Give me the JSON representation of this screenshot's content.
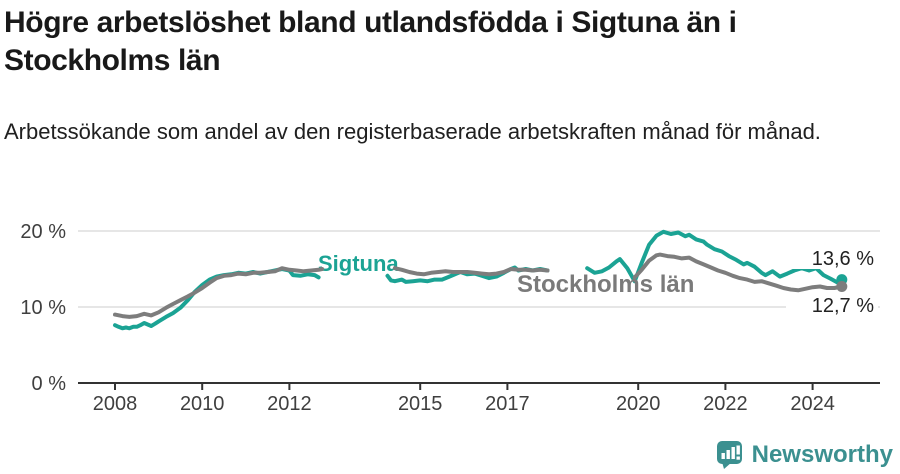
{
  "header": {
    "title": "Högre arbetslöshet bland utlandsfödda i Sigtuna än i Stockholms län",
    "subtitle": "Arbetssökande som andel av den registerbaserade arbetskraften månad för månad."
  },
  "colors": {
    "sigtuna": "#1ba394",
    "stockholm": "#7d7d7d",
    "sigtuna_label": "#1ba394",
    "stockholm_label": "#7a7a7a",
    "grid": "#dddddd",
    "axis": "#333333",
    "tick_label": "#3f3f3f",
    "value_label": "#222222",
    "brand": "#3b9090"
  },
  "icons": {
    "footer_logo": "newsworthy-bubble-bar-chart-icon"
  },
  "chart_data": {
    "type": "line",
    "unit": "%",
    "title": "Högre arbetslöshet bland utlandsfödda i Sigtuna än i Stockholms län",
    "subtitle": "Arbetssökande som andel av den registerbaserade arbetskraften månad för månad.",
    "xlabel": "",
    "ylabel": "",
    "xlim": [
      2007.15,
      2025.55
    ],
    "ylim": [
      0,
      21.5
    ],
    "grid": "horizontal",
    "legend_position": "inline-labels",
    "x_ticks": [
      2008,
      2010,
      2012,
      2015,
      2017,
      2020,
      2022,
      2024
    ],
    "x_tick_labels": [
      "2008",
      "2010",
      "2012",
      "2015",
      "2017",
      "2020",
      "2022",
      "2024"
    ],
    "y_ticks": [
      0,
      10,
      20
    ],
    "y_tick_labels": [
      "0 %",
      "10 %",
      "20 %"
    ],
    "series": [
      {
        "name": "Sigtuna",
        "end_label": "13,6 %",
        "end_value": 13.6,
        "segments": [
          [
            [
              2008.0,
              7.6
            ],
            [
              2008.08,
              7.4
            ],
            [
              2008.17,
              7.2
            ],
            [
              2008.25,
              7.3
            ],
            [
              2008.33,
              7.2
            ],
            [
              2008.42,
              7.4
            ],
            [
              2008.5,
              7.4
            ],
            [
              2008.58,
              7.6
            ],
            [
              2008.67,
              7.9
            ],
            [
              2008.75,
              7.7
            ],
            [
              2008.83,
              7.5
            ],
            [
              2008.92,
              7.8
            ],
            [
              2009.0,
              8.1
            ],
            [
              2009.17,
              8.7
            ],
            [
              2009.33,
              9.2
            ],
            [
              2009.5,
              9.9
            ],
            [
              2009.67,
              10.9
            ],
            [
              2009.83,
              12.0
            ],
            [
              2010.0,
              12.9
            ],
            [
              2010.17,
              13.6
            ],
            [
              2010.33,
              14.0
            ],
            [
              2010.5,
              14.2
            ],
            [
              2010.67,
              14.3
            ],
            [
              2010.83,
              14.5
            ],
            [
              2011.0,
              14.4
            ],
            [
              2011.17,
              14.6
            ],
            [
              2011.33,
              14.4
            ],
            [
              2011.5,
              14.6
            ],
            [
              2011.67,
              14.8
            ],
            [
              2011.83,
              15.0
            ],
            [
              2012.0,
              14.8
            ],
            [
              2012.08,
              14.2
            ],
            [
              2012.25,
              14.1
            ],
            [
              2012.42,
              14.3
            ],
            [
              2012.58,
              14.2
            ],
            [
              2012.67,
              13.9
            ]
          ],
          [
            [
              2014.25,
              14.1
            ],
            [
              2014.33,
              13.5
            ],
            [
              2014.42,
              13.4
            ],
            [
              2014.58,
              13.6
            ],
            [
              2014.67,
              13.3
            ],
            [
              2014.83,
              13.4
            ],
            [
              2015.0,
              13.5
            ],
            [
              2015.17,
              13.4
            ],
            [
              2015.33,
              13.6
            ],
            [
              2015.5,
              13.6
            ],
            [
              2015.67,
              14.0
            ],
            [
              2015.83,
              14.4
            ],
            [
              2015.92,
              14.6
            ],
            [
              2016.08,
              14.3
            ],
            [
              2016.25,
              14.4
            ],
            [
              2016.42,
              14.1
            ],
            [
              2016.58,
              13.8
            ],
            [
              2016.75,
              14.0
            ],
            [
              2016.92,
              14.5
            ],
            [
              2017.08,
              15.0
            ],
            [
              2017.17,
              15.2
            ],
            [
              2017.25,
              14.8
            ],
            [
              2017.42,
              15.0
            ],
            [
              2017.58,
              14.8
            ],
            [
              2017.75,
              15.0
            ],
            [
              2017.92,
              14.8
            ]
          ],
          [
            [
              2018.83,
              15.1
            ],
            [
              2019.0,
              14.5
            ],
            [
              2019.17,
              14.7
            ],
            [
              2019.33,
              15.2
            ],
            [
              2019.5,
              16.0
            ],
            [
              2019.58,
              16.3
            ],
            [
              2019.75,
              15.1
            ],
            [
              2019.92,
              13.4
            ],
            [
              2020.08,
              15.8
            ],
            [
              2020.25,
              18.2
            ],
            [
              2020.42,
              19.4
            ],
            [
              2020.58,
              19.9
            ],
            [
              2020.75,
              19.6
            ],
            [
              2020.92,
              19.8
            ],
            [
              2021.08,
              19.3
            ],
            [
              2021.17,
              19.5
            ],
            [
              2021.33,
              18.9
            ],
            [
              2021.5,
              18.6
            ],
            [
              2021.58,
              18.2
            ],
            [
              2021.75,
              17.6
            ],
            [
              2021.92,
              17.3
            ],
            [
              2022.08,
              16.7
            ],
            [
              2022.25,
              16.2
            ],
            [
              2022.42,
              15.6
            ],
            [
              2022.5,
              15.8
            ],
            [
              2022.67,
              15.3
            ],
            [
              2022.83,
              14.5
            ],
            [
              2022.92,
              14.2
            ],
            [
              2023.08,
              14.7
            ],
            [
              2023.25,
              14.0
            ],
            [
              2023.42,
              14.4
            ],
            [
              2023.58,
              14.8
            ],
            [
              2023.75,
              15.1
            ],
            [
              2023.92,
              14.8
            ],
            [
              2024.08,
              15.1
            ],
            [
              2024.25,
              14.2
            ],
            [
              2024.42,
              13.7
            ],
            [
              2024.58,
              13.2
            ],
            [
              2024.67,
              13.6
            ]
          ]
        ]
      },
      {
        "name": "Stockholms län",
        "end_label": "12,7 %",
        "end_value": 12.7,
        "segments": [
          [
            [
              2008.0,
              9.0
            ],
            [
              2008.17,
              8.8
            ],
            [
              2008.33,
              8.7
            ],
            [
              2008.5,
              8.8
            ],
            [
              2008.67,
              9.1
            ],
            [
              2008.83,
              8.9
            ],
            [
              2009.0,
              9.3
            ],
            [
              2009.17,
              9.9
            ],
            [
              2009.33,
              10.4
            ],
            [
              2009.5,
              10.9
            ],
            [
              2009.67,
              11.4
            ],
            [
              2009.83,
              11.9
            ],
            [
              2010.0,
              12.5
            ],
            [
              2010.17,
              13.2
            ],
            [
              2010.33,
              13.8
            ],
            [
              2010.5,
              14.1
            ],
            [
              2010.67,
              14.2
            ],
            [
              2010.83,
              14.4
            ],
            [
              2011.0,
              14.3
            ],
            [
              2011.17,
              14.5
            ],
            [
              2011.33,
              14.5
            ],
            [
              2011.5,
              14.6
            ],
            [
              2011.67,
              14.7
            ],
            [
              2011.83,
              15.1
            ],
            [
              2012.0,
              14.9
            ],
            [
              2012.17,
              14.8
            ],
            [
              2012.33,
              14.7
            ],
            [
              2012.5,
              14.8
            ],
            [
              2012.67,
              14.9
            ],
            [
              2012.75,
              15.0
            ]
          ],
          [
            [
              2014.42,
              15.1
            ],
            [
              2014.58,
              14.9
            ],
            [
              2014.75,
              14.6
            ],
            [
              2014.92,
              14.4
            ],
            [
              2015.08,
              14.3
            ],
            [
              2015.25,
              14.5
            ],
            [
              2015.42,
              14.6
            ],
            [
              2015.58,
              14.7
            ],
            [
              2015.75,
              14.6
            ],
            [
              2015.92,
              14.6
            ],
            [
              2016.08,
              14.6
            ],
            [
              2016.25,
              14.5
            ],
            [
              2016.42,
              14.4
            ],
            [
              2016.58,
              14.3
            ],
            [
              2016.75,
              14.4
            ],
            [
              2016.92,
              14.6
            ],
            [
              2017.08,
              15.0
            ],
            [
              2017.25,
              14.9
            ],
            [
              2017.42,
              14.9
            ],
            [
              2017.58,
              14.8
            ],
            [
              2017.75,
              14.9
            ],
            [
              2017.92,
              14.8
            ]
          ],
          [
            [
              2019.92,
              13.9
            ],
            [
              2020.08,
              14.9
            ],
            [
              2020.25,
              16.1
            ],
            [
              2020.42,
              16.8
            ],
            [
              2020.5,
              16.9
            ],
            [
              2020.67,
              16.7
            ],
            [
              2020.83,
              16.6
            ],
            [
              2021.0,
              16.4
            ],
            [
              2021.17,
              16.5
            ],
            [
              2021.33,
              16.0
            ],
            [
              2021.5,
              15.6
            ],
            [
              2021.67,
              15.2
            ],
            [
              2021.83,
              14.8
            ],
            [
              2022.0,
              14.5
            ],
            [
              2022.17,
              14.1
            ],
            [
              2022.33,
              13.8
            ],
            [
              2022.5,
              13.6
            ],
            [
              2022.67,
              13.3
            ],
            [
              2022.83,
              13.4
            ],
            [
              2023.0,
              13.1
            ],
            [
              2023.17,
              12.8
            ],
            [
              2023.33,
              12.5
            ],
            [
              2023.5,
              12.3
            ],
            [
              2023.67,
              12.2
            ],
            [
              2023.83,
              12.4
            ],
            [
              2024.0,
              12.6
            ],
            [
              2024.17,
              12.7
            ],
            [
              2024.33,
              12.5
            ],
            [
              2024.5,
              12.5
            ],
            [
              2024.67,
              12.7
            ]
          ]
        ]
      }
    ]
  },
  "footer": {
    "brand": "Newsworthy"
  }
}
